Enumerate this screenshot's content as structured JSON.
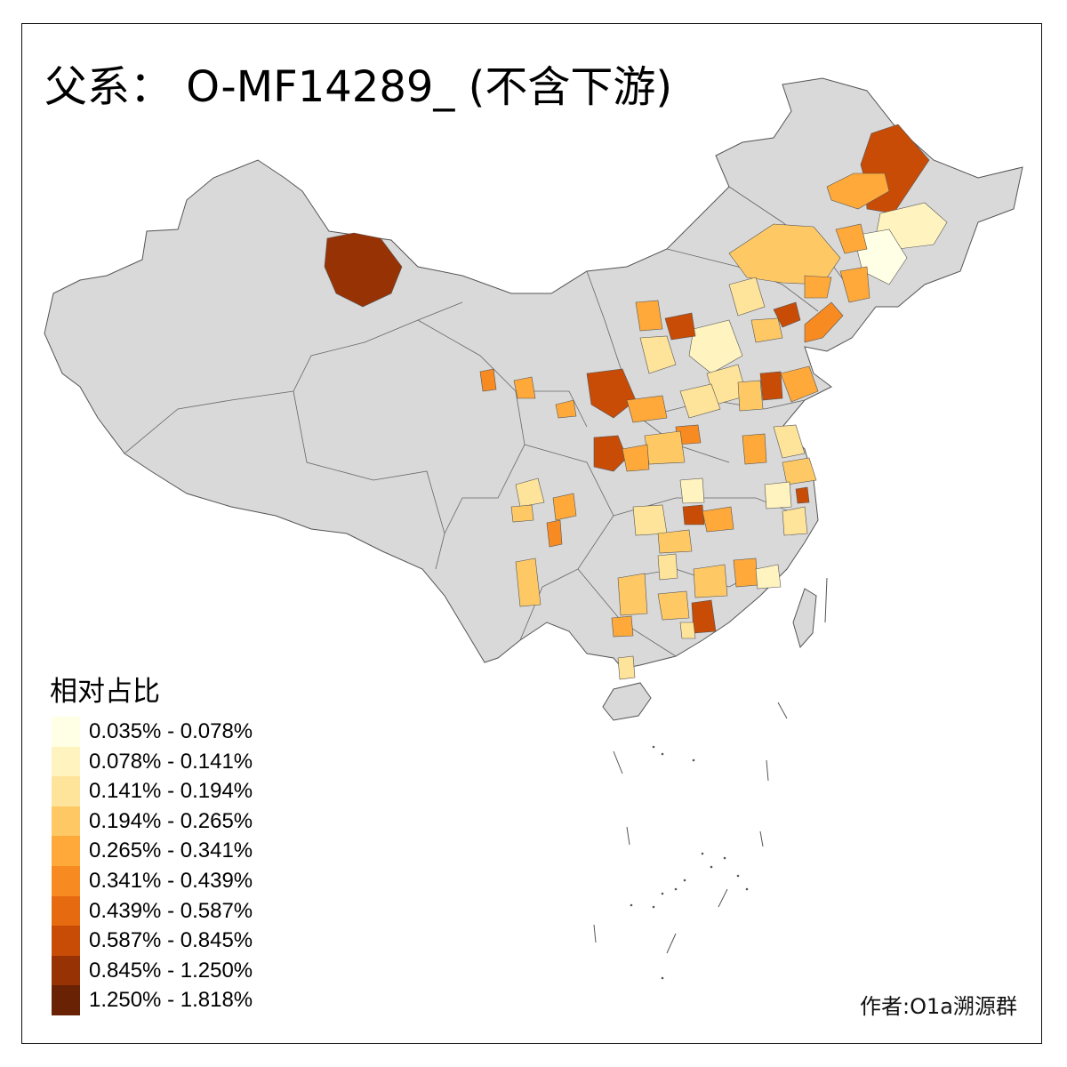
{
  "title": "父系： O-MF14289_ (不含下游)",
  "legend": {
    "title": "相对占比",
    "classes": [
      {
        "label": "0.035% - 0.078%",
        "color": "#ffffe5"
      },
      {
        "label": "0.078% - 0.141%",
        "color": "#fff3c0"
      },
      {
        "label": "0.141% - 0.194%",
        "color": "#fee39b"
      },
      {
        "label": "0.194% - 0.265%",
        "color": "#fec965"
      },
      {
        "label": "0.265% - 0.341%",
        "color": "#fea93a"
      },
      {
        "label": "0.341% - 0.439%",
        "color": "#f88a22"
      },
      {
        "label": "0.439% - 0.587%",
        "color": "#e66b10"
      },
      {
        "label": "0.587% - 0.845%",
        "color": "#c84c06"
      },
      {
        "label": "0.845% - 1.250%",
        "color": "#973204"
      },
      {
        "label": "1.250% - 1.818%",
        "color": "#6a2204"
      }
    ]
  },
  "credit": "作者:O1a溯源群",
  "colors": {
    "no_data": "#d9d9d9",
    "border": "#666666"
  }
}
